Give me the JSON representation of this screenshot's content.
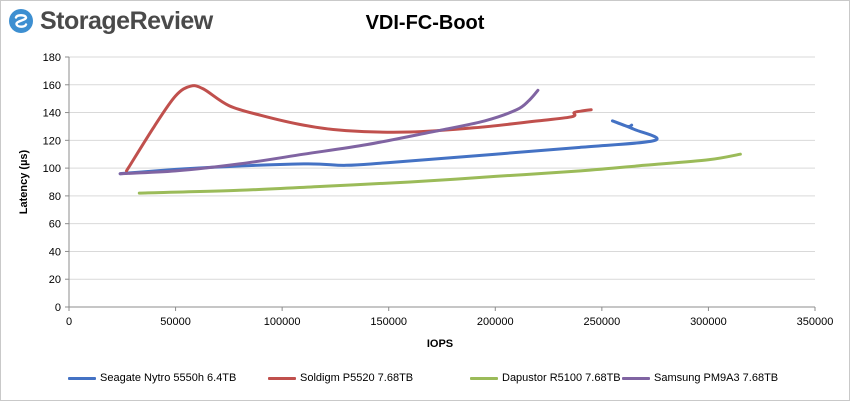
{
  "brand": {
    "name": "StorageReview"
  },
  "chart_data": {
    "type": "line",
    "title": "VDI-FC-Boot",
    "xlabel": "IOPS",
    "ylabel": "Latency (µs)",
    "xlim": [
      0,
      350000
    ],
    "ylim": [
      0,
      180
    ],
    "xticks": [
      0,
      50000,
      100000,
      150000,
      200000,
      250000,
      300000,
      350000
    ],
    "yticks": [
      0,
      20,
      40,
      60,
      80,
      100,
      120,
      140,
      160,
      180
    ],
    "grid": true,
    "legend_position": "bottom",
    "series": [
      {
        "name": "Seagate Nytro 5550h 6.4TB",
        "color": "#4472C4",
        "points": [
          [
            24000,
            96
          ],
          [
            60000,
            100
          ],
          [
            110000,
            103
          ],
          [
            130000,
            102
          ],
          [
            150000,
            104
          ],
          [
            200000,
            110
          ],
          [
            240000,
            115
          ],
          [
            275000,
            120
          ],
          [
            265000,
            128
          ],
          [
            255000,
            134
          ],
          [
            262000,
            130
          ],
          [
            264000,
            131
          ]
        ]
      },
      {
        "name": "Soldigm P5520 7.68TB",
        "color": "#C0504D",
        "points": [
          [
            27000,
            98
          ],
          [
            40000,
            130
          ],
          [
            50000,
            152
          ],
          [
            57000,
            159
          ],
          [
            63000,
            157
          ],
          [
            75000,
            145
          ],
          [
            90000,
            138
          ],
          [
            110000,
            131
          ],
          [
            130000,
            127
          ],
          [
            160000,
            126
          ],
          [
            190000,
            129
          ],
          [
            220000,
            134
          ],
          [
            236000,
            137
          ],
          [
            237000,
            140
          ],
          [
            240000,
            141
          ],
          [
            245000,
            142
          ]
        ]
      },
      {
        "name": "Dapustor R5100 7.68TB",
        "color": "#9BBB59",
        "points": [
          [
            33000,
            82
          ],
          [
            80000,
            84
          ],
          [
            120000,
            87
          ],
          [
            160000,
            90
          ],
          [
            200000,
            94
          ],
          [
            240000,
            98
          ],
          [
            270000,
            102
          ],
          [
            300000,
            106
          ],
          [
            315000,
            110
          ]
        ]
      },
      {
        "name": "Samsung PM9A3 7.68TB",
        "color": "#8064A2",
        "points": [
          [
            24000,
            96
          ],
          [
            50000,
            98
          ],
          [
            80000,
            103
          ],
          [
            110000,
            110
          ],
          [
            140000,
            117
          ],
          [
            170000,
            126
          ],
          [
            195000,
            134
          ],
          [
            210000,
            142
          ],
          [
            216000,
            149
          ],
          [
            220000,
            156
          ]
        ]
      }
    ]
  }
}
